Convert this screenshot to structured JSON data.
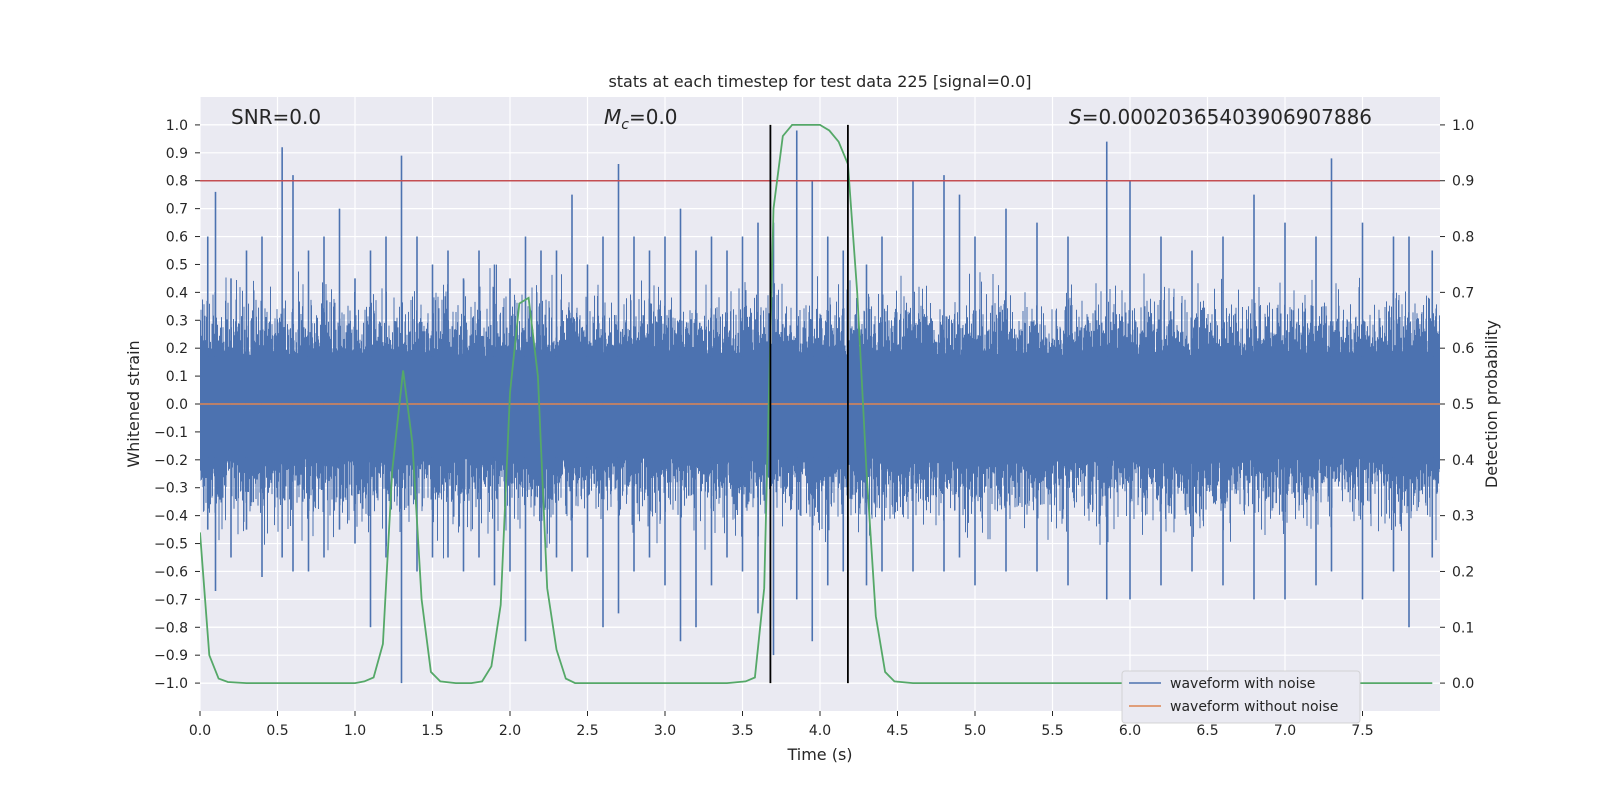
{
  "chart_data": {
    "type": "line",
    "title": "stats at each timestep for test data 225 [signal=0.0]",
    "xlabel": "Time (s)",
    "ylabel": "Whitened strain",
    "ylabel_right": "Detection probability",
    "xlim": [
      0.0,
      8.0
    ],
    "ylim": [
      -1.1,
      1.1
    ],
    "ylim_right": [
      -0.05,
      1.05
    ],
    "xticks": [
      "0.0",
      "0.5",
      "1.0",
      "1.5",
      "2.0",
      "2.5",
      "3.0",
      "3.5",
      "4.0",
      "4.5",
      "5.0",
      "5.5",
      "6.0",
      "6.5",
      "7.0",
      "7.5"
    ],
    "yticks_left": [
      "1.0",
      "0.9",
      "0.8",
      "0.7",
      "0.6",
      "0.5",
      "0.4",
      "0.3",
      "0.2",
      "0.1",
      "0.0",
      "−0.1",
      "−0.2",
      "−0.3",
      "−0.4",
      "−0.5",
      "−0.6",
      "−0.7",
      "−0.8",
      "−0.9",
      "−1.0"
    ],
    "yticks_right": [
      "1.0",
      "0.9",
      "0.8",
      "0.7",
      "0.6",
      "0.5",
      "0.4",
      "0.3",
      "0.2",
      "0.1",
      "0.0"
    ],
    "annotations": {
      "snr": "SNR=0.0",
      "mc_symbol": "M",
      "mc_sub": "c",
      "mc_value": "=0.0",
      "s_symbol": "S",
      "s_value": "=0.00020365403906907886"
    },
    "threshold_line": {
      "axis": "right",
      "value": 0.9,
      "color": "#c44e52"
    },
    "vertical_lines": [
      3.68,
      4.18
    ],
    "noise_envelope_peaks": [
      [
        0.05,
        0.6,
        -0.45
      ],
      [
        0.1,
        0.76,
        -0.67
      ],
      [
        0.2,
        0.45,
        -0.55
      ],
      [
        0.3,
        0.55,
        -0.45
      ],
      [
        0.4,
        0.6,
        -0.62
      ],
      [
        0.53,
        0.92,
        -0.55
      ],
      [
        0.6,
        0.82,
        -0.6
      ],
      [
        0.7,
        0.55,
        -0.6
      ],
      [
        0.8,
        0.6,
        -0.55
      ],
      [
        0.9,
        0.7,
        -0.45
      ],
      [
        1.0,
        0.45,
        -0.5
      ],
      [
        1.1,
        0.55,
        -0.8
      ],
      [
        1.2,
        0.6,
        -0.55
      ],
      [
        1.3,
        0.89,
        -1.0
      ],
      [
        1.4,
        0.6,
        -0.6
      ],
      [
        1.5,
        0.5,
        -0.55
      ],
      [
        1.6,
        0.55,
        -0.55
      ],
      [
        1.7,
        0.45,
        -0.6
      ],
      [
        1.8,
        0.55,
        -0.55
      ],
      [
        1.9,
        0.5,
        -0.65
      ],
      [
        2.0,
        0.45,
        -0.6
      ],
      [
        2.1,
        0.6,
        -0.85
      ],
      [
        2.2,
        0.55,
        -0.6
      ],
      [
        2.3,
        0.55,
        -0.55
      ],
      [
        2.4,
        0.75,
        -0.6
      ],
      [
        2.5,
        0.5,
        -0.55
      ],
      [
        2.6,
        0.6,
        -0.8
      ],
      [
        2.7,
        0.86,
        -0.75
      ],
      [
        2.8,
        0.6,
        -0.6
      ],
      [
        2.9,
        0.55,
        -0.55
      ],
      [
        3.0,
        0.6,
        -0.65
      ],
      [
        3.1,
        0.7,
        -0.85
      ],
      [
        3.2,
        0.55,
        -0.8
      ],
      [
        3.3,
        0.6,
        -0.65
      ],
      [
        3.4,
        0.55,
        -0.55
      ],
      [
        3.5,
        0.6,
        -0.6
      ],
      [
        3.6,
        0.65,
        -0.75
      ],
      [
        3.7,
        0.65,
        -0.9
      ],
      [
        3.85,
        0.98,
        -0.7
      ],
      [
        3.95,
        0.8,
        -0.85
      ],
      [
        4.05,
        0.6,
        -0.65
      ],
      [
        4.15,
        0.55,
        -0.6
      ],
      [
        4.3,
        0.5,
        -0.65
      ],
      [
        4.4,
        0.6,
        -0.6
      ],
      [
        4.6,
        0.8,
        -0.6
      ],
      [
        4.8,
        0.82,
        -0.6
      ],
      [
        4.9,
        0.75,
        -0.55
      ],
      [
        5.0,
        0.6,
        -0.65
      ],
      [
        5.2,
        0.7,
        -0.6
      ],
      [
        5.4,
        0.65,
        -0.6
      ],
      [
        5.6,
        0.6,
        -0.65
      ],
      [
        5.85,
        0.94,
        -0.7
      ],
      [
        6.0,
        0.8,
        -0.7
      ],
      [
        6.2,
        0.6,
        -0.65
      ],
      [
        6.4,
        0.55,
        -0.6
      ],
      [
        6.6,
        0.6,
        -0.65
      ],
      [
        6.8,
        0.75,
        -0.7
      ],
      [
        7.0,
        0.65,
        -0.7
      ],
      [
        7.2,
        0.6,
        -0.65
      ],
      [
        7.3,
        0.88,
        -0.6
      ],
      [
        7.5,
        0.65,
        -0.7
      ],
      [
        7.7,
        0.6,
        -0.6
      ],
      [
        7.8,
        0.6,
        -0.8
      ],
      [
        7.95,
        0.55,
        -0.55
      ]
    ],
    "series": [
      {
        "name": "waveform with noise",
        "axis": "left",
        "color": "#4c72b0",
        "kind": "noise"
      },
      {
        "name": "waveform without noise",
        "axis": "left",
        "color": "#dd8452",
        "kind": "constant",
        "value": 0.0
      },
      {
        "name": "detection probability",
        "axis": "right",
        "color": "#55a868",
        "kind": "line",
        "x": [
          0.0,
          0.06,
          0.12,
          0.18,
          0.3,
          0.5,
          0.7,
          0.9,
          1.0,
          1.06,
          1.12,
          1.18,
          1.24,
          1.31,
          1.37,
          1.43,
          1.49,
          1.55,
          1.65,
          1.75,
          1.82,
          1.88,
          1.94,
          2.0,
          2.06,
          2.12,
          2.18,
          2.24,
          2.3,
          2.36,
          2.42,
          2.6,
          3.0,
          3.4,
          3.52,
          3.58,
          3.64,
          3.7,
          3.76,
          3.82,
          3.88,
          4.0,
          4.06,
          4.12,
          4.18,
          4.24,
          4.3,
          4.36,
          4.42,
          4.48,
          4.6,
          5.0,
          6.0,
          7.0,
          7.95
        ],
        "y": [
          0.27,
          0.05,
          0.008,
          0.002,
          0.0,
          0.0,
          0.0,
          0.0,
          0.0,
          0.003,
          0.01,
          0.07,
          0.38,
          0.56,
          0.43,
          0.15,
          0.02,
          0.003,
          0.0,
          0.0,
          0.003,
          0.03,
          0.14,
          0.52,
          0.68,
          0.69,
          0.55,
          0.17,
          0.06,
          0.008,
          0.0,
          0.0,
          0.0,
          0.0,
          0.003,
          0.01,
          0.17,
          0.85,
          0.98,
          1.0,
          1.0,
          1.0,
          0.99,
          0.97,
          0.93,
          0.7,
          0.38,
          0.12,
          0.02,
          0.003,
          0.0,
          0.0,
          0.0,
          0.0,
          0.0
        ]
      }
    ],
    "legend": {
      "placement": "lower-right",
      "entries": [
        "waveform with noise",
        "waveform without noise"
      ]
    }
  }
}
